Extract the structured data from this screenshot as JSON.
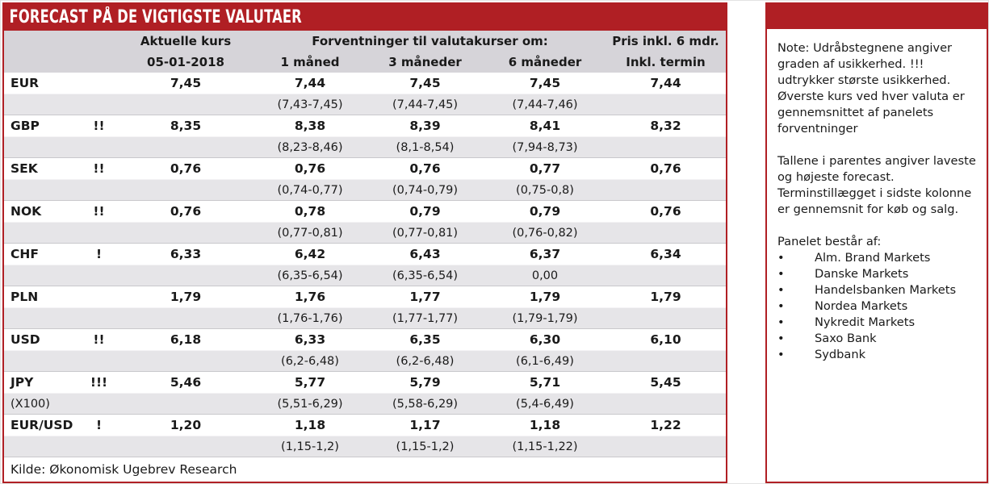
{
  "colors": {
    "accent_red": "#b01f24",
    "header_gray": "#d6d4d9",
    "range_row_gray": "#e6e5e8",
    "text": "#1a1a1a"
  },
  "main_table": {
    "title": "FORECAST PÅ DE VIGTIGSTE VALUTAER",
    "header": {
      "current_label": "Aktuelle kurs",
      "current_date": "05-01-2018",
      "forecast_group_label": "Forventninger til valutakurser om:",
      "col_1m": "1 måned",
      "col_3m": "3 måneder",
      "col_6m": "6 måneder",
      "price_label_line1": "Pris inkl. 6 mdr.",
      "price_label_line2": "Inkl. termin"
    },
    "rows": [
      {
        "currency": "EUR",
        "sub": "",
        "marks": "",
        "current": "7,45",
        "f1m": "7,44",
        "f1m_range": "(7,43-7,45)",
        "f3m": "7,45",
        "f3m_range": "(7,44-7,45)",
        "f6m": "7,45",
        "f6m_range": "(7,44-7,46)",
        "price": "7,44"
      },
      {
        "currency": "GBP",
        "sub": "",
        "marks": "!!",
        "current": "8,35",
        "f1m": "8,38",
        "f1m_range": "(8,23-8,46)",
        "f3m": "8,39",
        "f3m_range": "(8,1-8,54)",
        "f6m": "8,41",
        "f6m_range": "(7,94-8,73)",
        "price": "8,32"
      },
      {
        "currency": "SEK",
        "sub": "",
        "marks": "!!",
        "current": "0,76",
        "f1m": "0,76",
        "f1m_range": "(0,74-0,77)",
        "f3m": "0,76",
        "f3m_range": "(0,74-0,79)",
        "f6m": "0,77",
        "f6m_range": "(0,75-0,8)",
        "price": "0,76"
      },
      {
        "currency": "NOK",
        "sub": "",
        "marks": "!!",
        "current": "0,76",
        "f1m": "0,78",
        "f1m_range": "(0,77-0,81)",
        "f3m": "0,79",
        "f3m_range": "(0,77-0,81)",
        "f6m": "0,79",
        "f6m_range": "(0,76-0,82)",
        "price": "0,76"
      },
      {
        "currency": "CHF",
        "sub": "",
        "marks": "!",
        "current": "6,33",
        "f1m": "6,42",
        "f1m_range": "(6,35-6,54)",
        "f3m": "6,43",
        "f3m_range": "(6,35-6,54)",
        "f6m": "6,37",
        "f6m_range": "0,00",
        "price": "6,34"
      },
      {
        "currency": "PLN",
        "sub": "",
        "marks": "",
        "current": "1,79",
        "f1m": "1,76",
        "f1m_range": "(1,76-1,76)",
        "f3m": "1,77",
        "f3m_range": "(1,77-1,77)",
        "f6m": "1,79",
        "f6m_range": "(1,79-1,79)",
        "price": "1,79"
      },
      {
        "currency": "USD",
        "sub": "",
        "marks": "!!",
        "current": "6,18",
        "f1m": "6,33",
        "f1m_range": "(6,2-6,48)",
        "f3m": "6,35",
        "f3m_range": "(6,2-6,48)",
        "f6m": "6,30",
        "f6m_range": "(6,1-6,49)",
        "price": "6,10"
      },
      {
        "currency": "JPY",
        "sub": "(X100)",
        "marks": "!!!",
        "current": "5,46",
        "f1m": "5,77",
        "f1m_range": "(5,51-6,29)",
        "f3m": "5,79",
        "f3m_range": "(5,58-6,29)",
        "f6m": "5,71",
        "f6m_range": "(5,4-6,49)",
        "price": "5,45"
      },
      {
        "currency": "EUR/USD",
        "sub": "",
        "marks": "!",
        "current": "1,20",
        "f1m": "1,18",
        "f1m_range": "(1,15-1,2)",
        "f3m": "1,17",
        "f3m_range": "(1,15-1,2)",
        "f6m": "1,18",
        "f6m_range": "(1,15-1,22)",
        "price": "1,22"
      }
    ],
    "source": "Kilde: Økonomisk Ugebrev Research"
  },
  "note_panel": {
    "bullet_glyph": "•",
    "note_paragraph_1": "Note: Udråbstegnene angiver graden af usikkerhed. !!! udtrykker største usikkerhed. Øverste kurs ved hver valuta er gennemsnittet af panelets forventninger",
    "note_paragraph_2": "Tallene i parentes angiver laveste og højeste forecast. Terminstillægget i sidste kolonne er gennemsnit for køb og salg.",
    "panel_heading": "Panelet består af:",
    "panel_members": [
      "Alm. Brand Markets",
      "Danske Markets",
      "Handelsbanken Markets",
      "Nordea Markets",
      "Nykredit Markets",
      "Saxo Bank",
      "Sydbank"
    ]
  }
}
